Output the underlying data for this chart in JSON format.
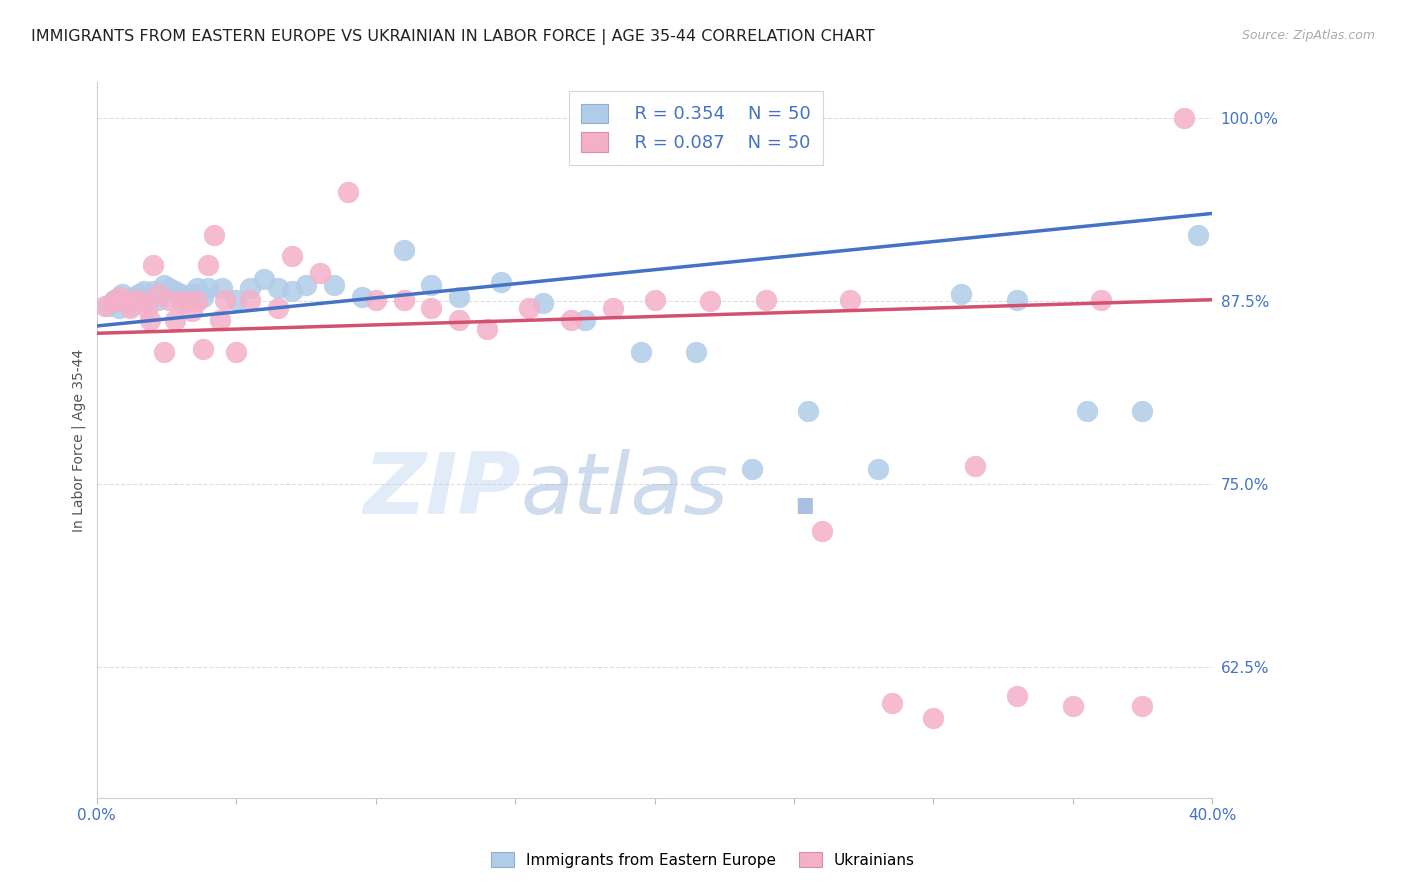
{
  "title": "IMMIGRANTS FROM EASTERN EUROPE VS UKRAINIAN IN LABOR FORCE | AGE 35-44 CORRELATION CHART",
  "source": "Source: ZipAtlas.com",
  "ylabel": "In Labor Force | Age 35-44",
  "right_yticks": [
    0.625,
    0.75,
    0.875,
    1.0
  ],
  "right_ytick_labels": [
    "62.5%",
    "75.0%",
    "87.5%",
    "100.0%"
  ],
  "xlim": [
    0.0,
    0.4
  ],
  "ylim": [
    0.535,
    1.025
  ],
  "legend_R_blue": "R = 0.354",
  "legend_N_blue": "N = 50",
  "legend_R_pink": "R = 0.087",
  "legend_N_pink": "N = 50",
  "legend_label_blue": "Immigrants from Eastern Europe",
  "legend_label_pink": "Ukrainians",
  "blue_color": "#b0cce8",
  "pink_color": "#f4b0c8",
  "blue_line_color": "#4472c4",
  "pink_line_color": "#d45070",
  "blue_scatter_x": [
    0.004,
    0.006,
    0.008,
    0.009,
    0.01,
    0.011,
    0.012,
    0.013,
    0.014,
    0.015,
    0.016,
    0.017,
    0.018,
    0.019,
    0.02,
    0.022,
    0.024,
    0.026,
    0.028,
    0.03,
    0.032,
    0.034,
    0.036,
    0.038,
    0.04,
    0.045,
    0.05,
    0.055,
    0.06,
    0.065,
    0.07,
    0.075,
    0.085,
    0.095,
    0.11,
    0.12,
    0.13,
    0.145,
    0.16,
    0.175,
    0.195,
    0.215,
    0.235,
    0.255,
    0.28,
    0.31,
    0.33,
    0.355,
    0.375,
    0.395
  ],
  "blue_scatter_y": [
    0.872,
    0.876,
    0.87,
    0.88,
    0.875,
    0.876,
    0.872,
    0.878,
    0.875,
    0.88,
    0.876,
    0.882,
    0.876,
    0.878,
    0.882,
    0.876,
    0.886,
    0.884,
    0.882,
    0.88,
    0.878,
    0.88,
    0.884,
    0.878,
    0.884,
    0.884,
    0.876,
    0.884,
    0.89,
    0.884,
    0.882,
    0.886,
    0.886,
    0.878,
    0.91,
    0.886,
    0.878,
    0.888,
    0.874,
    0.862,
    0.84,
    0.84,
    0.76,
    0.8,
    0.76,
    0.88,
    0.876,
    0.8,
    0.8,
    0.92
  ],
  "pink_scatter_x": [
    0.003,
    0.006,
    0.008,
    0.01,
    0.012,
    0.014,
    0.016,
    0.018,
    0.019,
    0.02,
    0.022,
    0.024,
    0.026,
    0.028,
    0.03,
    0.032,
    0.034,
    0.036,
    0.038,
    0.04,
    0.042,
    0.044,
    0.046,
    0.05,
    0.055,
    0.065,
    0.07,
    0.08,
    0.09,
    0.1,
    0.11,
    0.12,
    0.13,
    0.14,
    0.155,
    0.17,
    0.185,
    0.2,
    0.22,
    0.24,
    0.26,
    0.27,
    0.285,
    0.3,
    0.315,
    0.33,
    0.35,
    0.36,
    0.375,
    0.39
  ],
  "pink_scatter_y": [
    0.872,
    0.875,
    0.878,
    0.875,
    0.87,
    0.876,
    0.875,
    0.87,
    0.862,
    0.9,
    0.88,
    0.84,
    0.876,
    0.862,
    0.875,
    0.875,
    0.868,
    0.875,
    0.842,
    0.9,
    0.92,
    0.862,
    0.876,
    0.84,
    0.876,
    0.87,
    0.906,
    0.894,
    0.95,
    0.876,
    0.876,
    0.87,
    0.862,
    0.856,
    0.87,
    0.862,
    0.87,
    0.876,
    0.875,
    0.876,
    0.718,
    0.876,
    0.6,
    0.59,
    0.762,
    0.605,
    0.598,
    0.876,
    0.598,
    1.0
  ],
  "blue_trend_x": [
    0.0,
    0.4
  ],
  "blue_trend_y": [
    0.858,
    0.935
  ],
  "pink_trend_x": [
    0.0,
    0.4
  ],
  "pink_trend_y": [
    0.853,
    0.876
  ],
  "watermark_zip": "ZIP",
  "watermark_atlas": "atlas",
  "watermark_dot": ".",
  "background_color": "#ffffff",
  "grid_color": "#dddddd",
  "title_fontsize": 11.5,
  "right_axis_color": "#4472c4",
  "legend_color": "#4472c4"
}
